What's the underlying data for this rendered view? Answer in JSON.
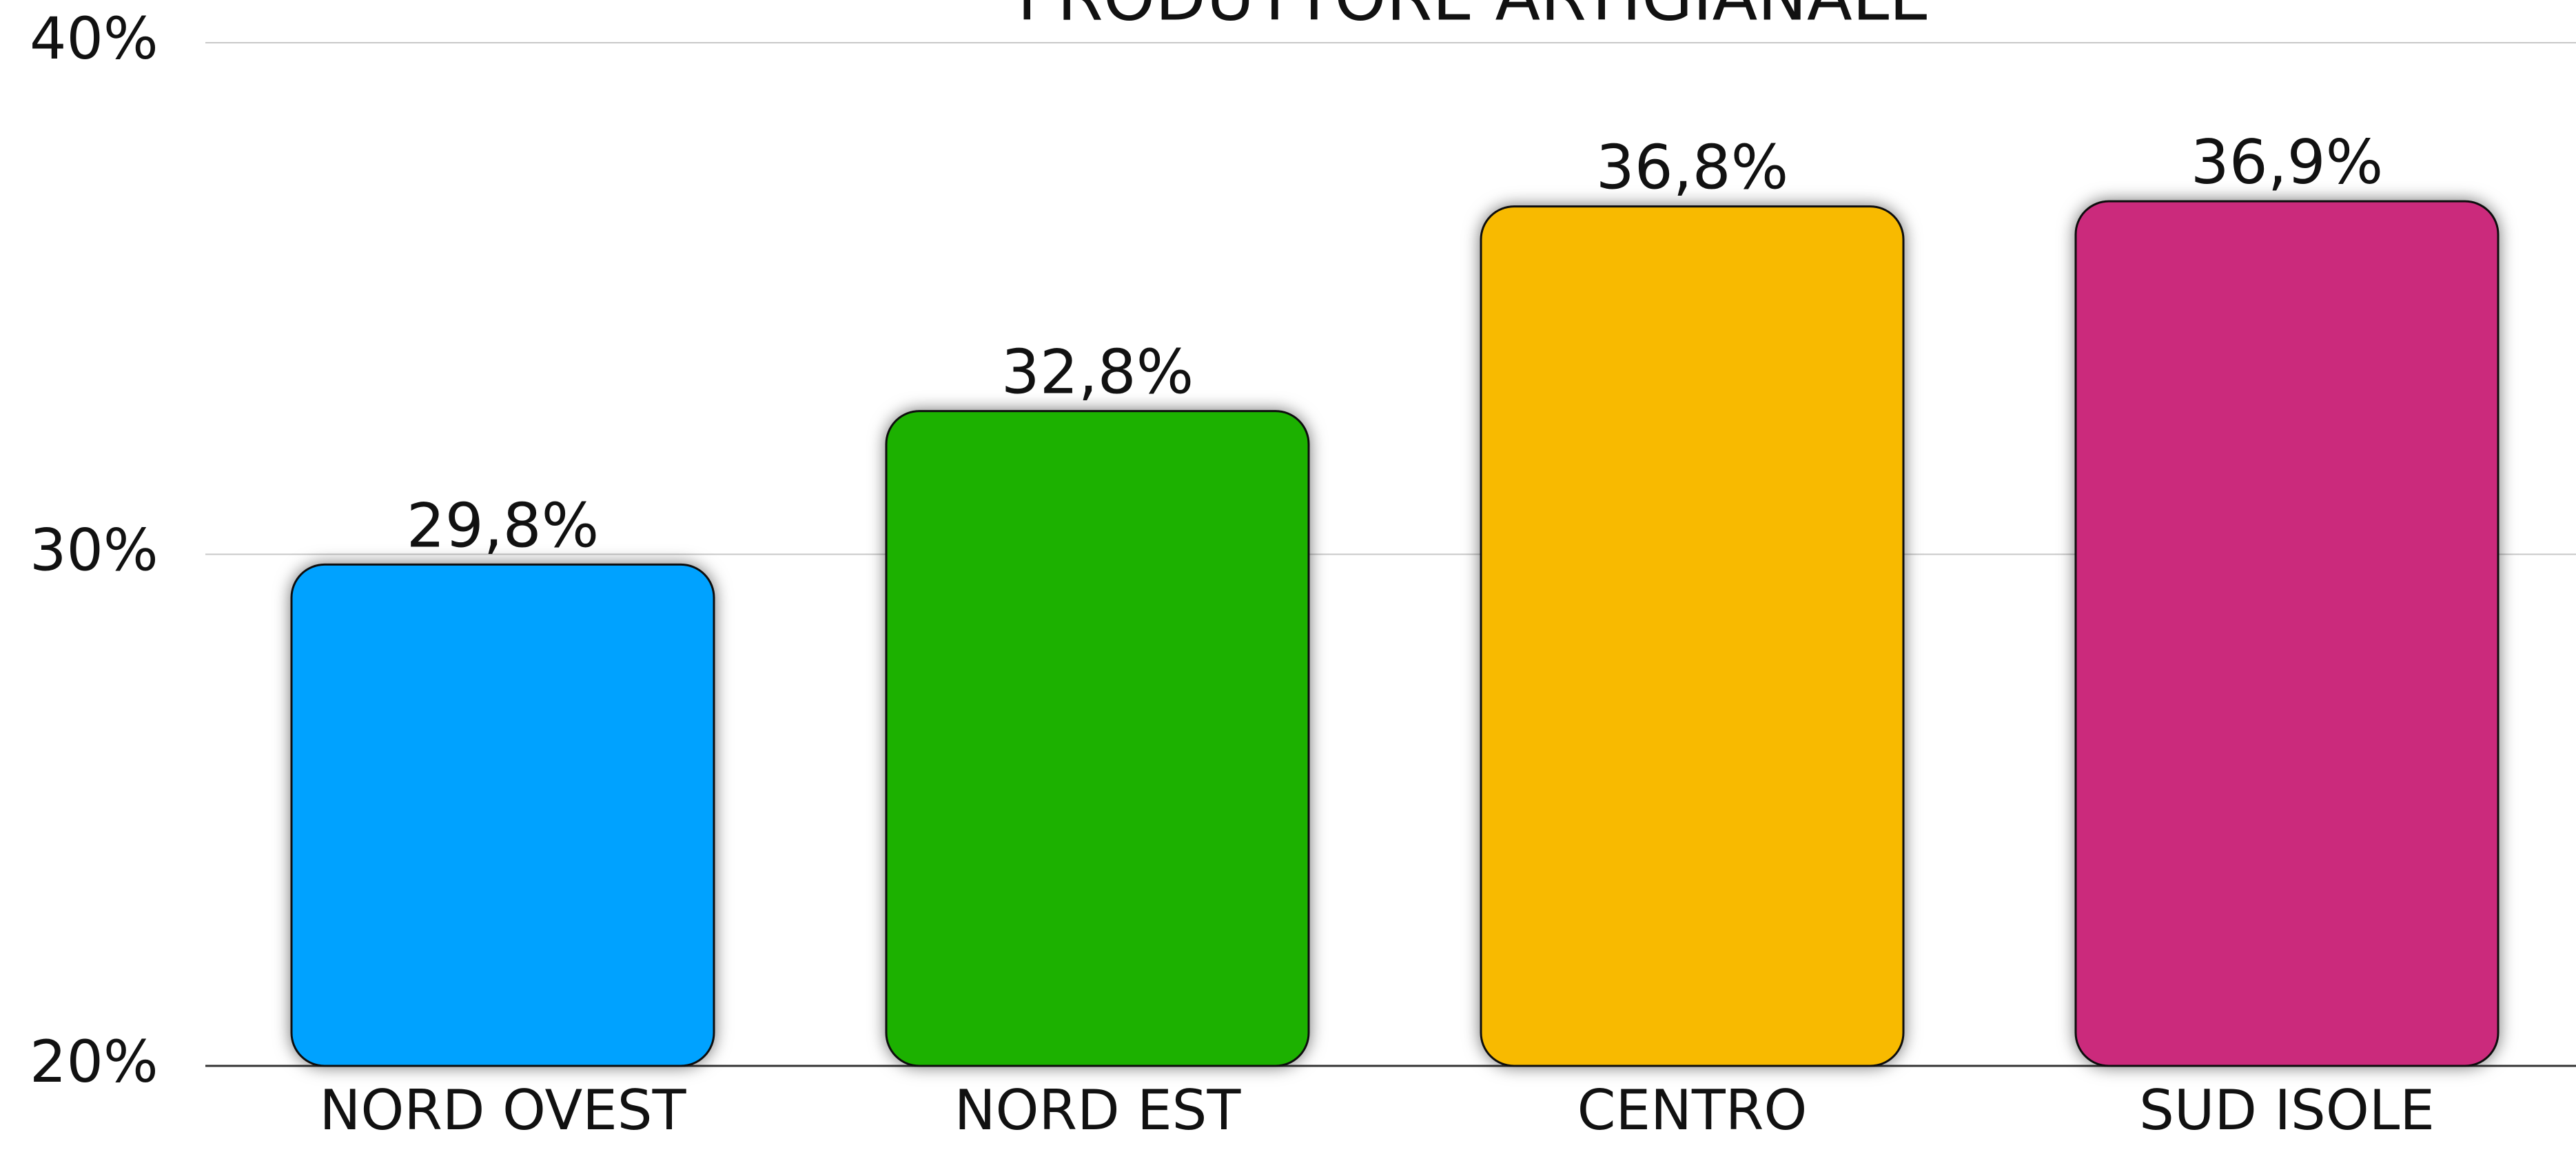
{
  "chart_data": {
    "type": "bar",
    "title": "PRODUTTORE ARTIGIANALE",
    "categories": [
      "NORD OVEST",
      "NORD EST",
      "CENTRO",
      "SUD ISOLE"
    ],
    "values": [
      29.8,
      32.8,
      36.8,
      36.9
    ],
    "value_labels": [
      "29,8%",
      "32,8%",
      "36,8%",
      "36,9%"
    ],
    "colors": [
      "#00a2ff",
      "#1db100",
      "#f8ba00",
      "#cb297b"
    ],
    "ylim": [
      20,
      40
    ],
    "yticks": [
      {
        "value": 20,
        "label": "20%"
      },
      {
        "value": 30,
        "label": "30%"
      },
      {
        "value": 40,
        "label": "40%"
      }
    ],
    "grid": true
  }
}
